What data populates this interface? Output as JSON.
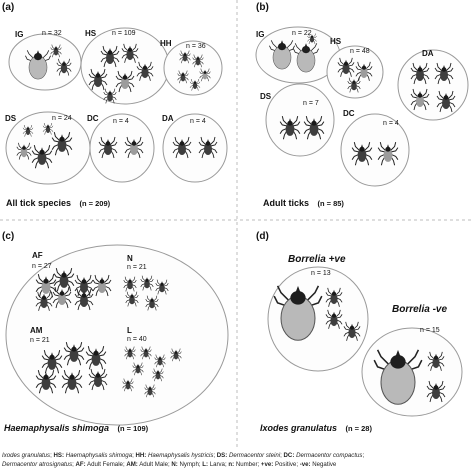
{
  "panel_a": {
    "label": "(a)",
    "caption": "All tick species",
    "caption_n": "(n = 209)",
    "groups": [
      {
        "code": "IG",
        "n": "n = 32"
      },
      {
        "code": "HS",
        "n": "n = 109"
      },
      {
        "code": "HH",
        "n": "n = 36"
      },
      {
        "code": "DS",
        "n": "n = 24"
      },
      {
        "code": "DC",
        "n": "n = 4"
      },
      {
        "code": "DA",
        "n": "n = 4"
      }
    ]
  },
  "panel_b": {
    "label": "(b)",
    "caption": "Adult ticks",
    "caption_n": "(n = 85)",
    "groups": [
      {
        "code": "IG",
        "n": "n = 22"
      },
      {
        "code": "HS",
        "n": "n = 48"
      },
      {
        "code": "DA",
        "n": ""
      },
      {
        "code": "DS",
        "n": "n = 7"
      },
      {
        "code": "DC",
        "n": "n = 4"
      }
    ]
  },
  "panel_c": {
    "label": "(c)",
    "caption": "Haemaphysalis shimoga",
    "caption_n": "(n = 109)",
    "groups": [
      {
        "code": "AF",
        "n": "n = 27"
      },
      {
        "code": "N",
        "n": "n = 21"
      },
      {
        "code": "AM",
        "n": "n = 21"
      },
      {
        "code": "L",
        "n": "n = 40"
      }
    ]
  },
  "panel_d": {
    "label": "(d)",
    "caption": "Ixodes granulatus",
    "caption_n": "(n = 28)",
    "groups": [
      {
        "title": "Borrelia +ve",
        "n": "n = 13"
      },
      {
        "title": "Borrelia -ve",
        "n": "n = 15"
      }
    ]
  },
  "legend": {
    "line1": [
      {
        "k": "",
        "v": "Ixodes granulatus"
      },
      {
        "k": "HS:",
        "v": "Haemaphysalis shimoga"
      },
      {
        "k": "HH:",
        "v": "Haemaphysalis hystricis"
      },
      {
        "k": "DS:",
        "v": "Dermacentor steini"
      },
      {
        "k": "DC:",
        "v": "Dermacentor compactus"
      }
    ],
    "line2": [
      {
        "k": "",
        "v": "Dermacentor atrosignatus"
      },
      {
        "k": "AF:",
        "v": "Adult Female"
      },
      {
        "k": "AM:",
        "v": "Adult Male"
      },
      {
        "k": "N:",
        "v": "Nymph"
      },
      {
        "k": "L:",
        "v": "Larva"
      },
      {
        "k": "n:",
        "v": "Number"
      },
      {
        "k": "+ve:",
        "v": "Positive"
      },
      {
        "k": "-ve:",
        "v": "Negative"
      }
    ]
  },
  "colors": {
    "circle_fill": "#fdfdfd",
    "circle_stroke": "#9a9a9a",
    "divider": "#bdbdbd",
    "tick_dark": "#3e3e3e",
    "tick_gray": "#9c9c9c",
    "engorged": "#b9b9b9"
  },
  "icons": [
    "tick-icon",
    "engorged-tick-icon"
  ]
}
